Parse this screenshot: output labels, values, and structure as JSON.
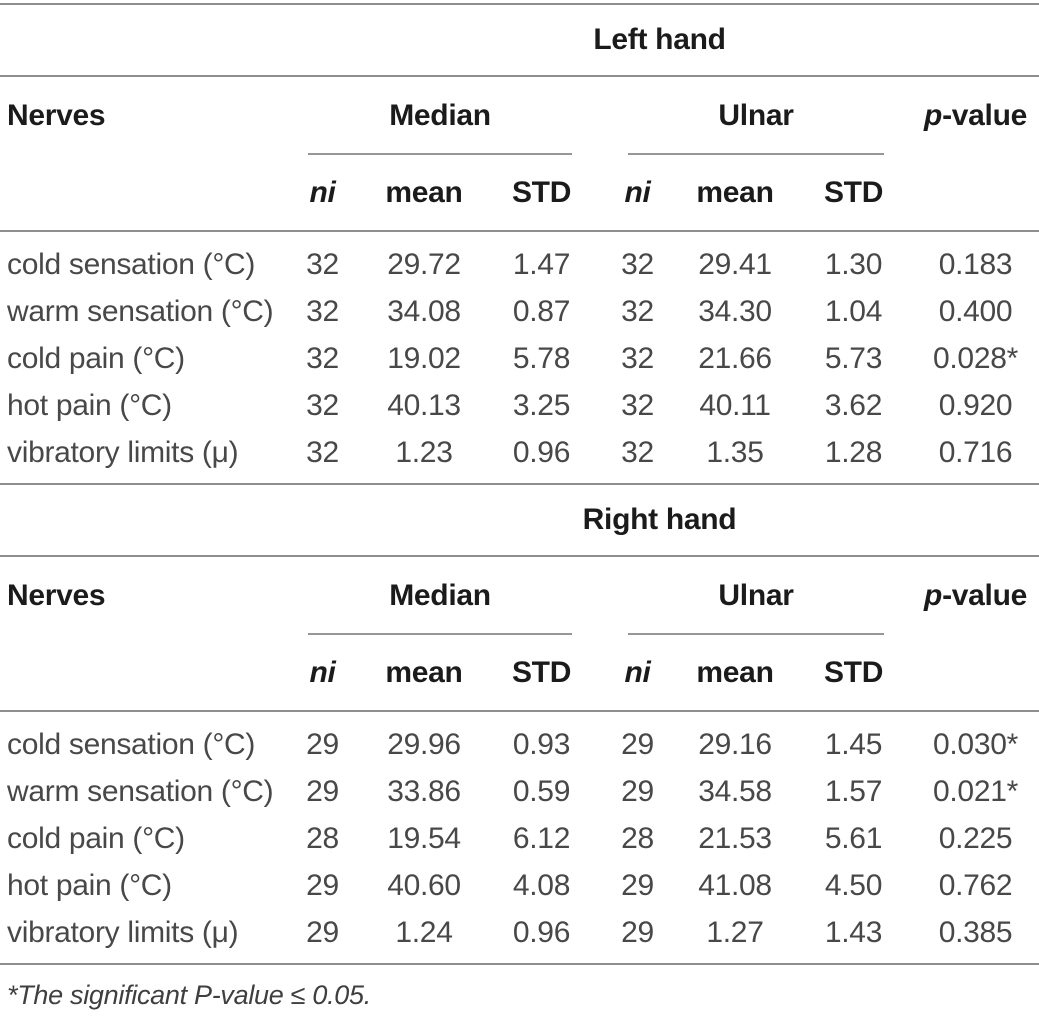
{
  "colors": {
    "rule": "#8e8e8e",
    "header_text": "#1b1b1b",
    "body_text": "#484848",
    "background": "#ffffff"
  },
  "sections": [
    {
      "hand_label": "Left hand",
      "nerves_header": "Nerves",
      "group_headers": [
        "Median",
        "Ulnar"
      ],
      "p_header_italic": "p",
      "p_header_rest": "-value",
      "sub_headers": [
        {
          "label": "ni",
          "italic": true
        },
        {
          "label": "mean",
          "italic": false
        },
        {
          "label": "STD",
          "italic": false
        },
        {
          "label": "ni",
          "italic": true
        },
        {
          "label": "mean",
          "italic": false
        },
        {
          "label": "STD",
          "italic": false
        }
      ],
      "rows": [
        {
          "label": "cold sensation (°C)",
          "values": [
            "32",
            "29.72",
            "1.47",
            "32",
            "29.41",
            "1.30",
            "0.183"
          ]
        },
        {
          "label": "warm sensation (°C)",
          "values": [
            "32",
            "34.08",
            "0.87",
            "32",
            "34.30",
            "1.04",
            "0.400"
          ]
        },
        {
          "label": "cold pain (°C)",
          "values": [
            "32",
            "19.02",
            "5.78",
            "32",
            "21.66",
            "5.73",
            "0.028*"
          ]
        },
        {
          "label": "hot pain (°C)",
          "values": [
            "32",
            "40.13",
            "3.25",
            "32",
            "40.11",
            "3.62",
            "0.920"
          ]
        },
        {
          "label": "vibratory limits (μ)",
          "values": [
            "32",
            "1.23",
            "0.96",
            "32",
            "1.35",
            "1.28",
            "0.716"
          ]
        }
      ]
    },
    {
      "hand_label": "Right hand",
      "nerves_header": "Nerves",
      "group_headers": [
        "Median",
        "Ulnar"
      ],
      "p_header_italic": "p",
      "p_header_rest": "-value",
      "sub_headers": [
        {
          "label": "ni",
          "italic": true
        },
        {
          "label": "mean",
          "italic": false
        },
        {
          "label": "STD",
          "italic": false
        },
        {
          "label": "ni",
          "italic": true
        },
        {
          "label": "mean",
          "italic": false
        },
        {
          "label": "STD",
          "italic": false
        }
      ],
      "rows": [
        {
          "label": "cold sensation (°C)",
          "values": [
            "29",
            "29.96",
            "0.93",
            "29",
            "29.16",
            "1.45",
            "0.030*"
          ]
        },
        {
          "label": "warm sensation (°C)",
          "values": [
            "29",
            "33.86",
            "0.59",
            "29",
            "34.58",
            "1.57",
            "0.021*"
          ]
        },
        {
          "label": "cold pain (°C)",
          "values": [
            "28",
            "19.54",
            "6.12",
            "28",
            "21.53",
            "5.61",
            "0.225"
          ]
        },
        {
          "label": "hot pain (°C)",
          "values": [
            "29",
            "40.60",
            "4.08",
            "29",
            "41.08",
            "4.50",
            "0.762"
          ]
        },
        {
          "label": "vibratory limits (μ)",
          "values": [
            "29",
            "1.24",
            "0.96",
            "29",
            "1.27",
            "1.43",
            "0.385"
          ]
        }
      ]
    }
  ],
  "footnote": "*The significant P-value ≤ 0.05."
}
